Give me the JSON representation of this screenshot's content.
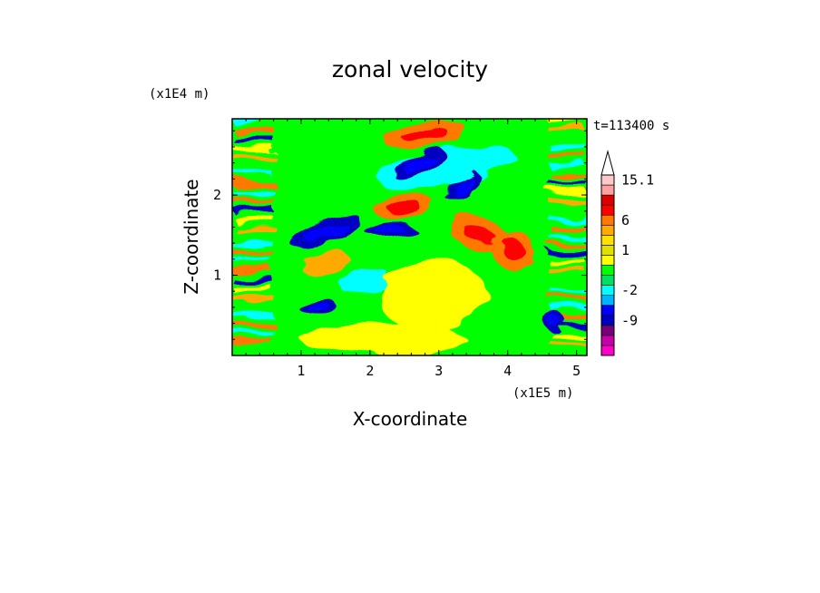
{
  "chart_data": {
    "type": "heatmap",
    "title": "zonal velocity",
    "xlabel": "X-coordinate",
    "ylabel": "Z-coordinate",
    "x_unit": "(x1E5 m)",
    "y_unit": "(x1E4 m)",
    "time_label": "t=113400 s",
    "xlim": [
      0,
      5.15
    ],
    "ylim": [
      0,
      2.95
    ],
    "x_ticks": [
      "1",
      "2",
      "3",
      "4",
      "5"
    ],
    "y_ticks": [
      "1",
      "2"
    ],
    "colorbar": {
      "colors": [
        "#ff00c8",
        "#c800aa",
        "#780078",
        "#0000c0",
        "#0000ff",
        "#00b4ff",
        "#00ffff",
        "#00e164",
        "#00ff00",
        "#ffff00",
        "#e1e100",
        "#ffe100",
        "#ffaa00",
        "#ff7800",
        "#ff0000",
        "#dc0000",
        "#ffa0a0",
        "#ffc8c8"
      ],
      "labels": [
        "-9",
        "-2",
        "1",
        "6",
        "15.1"
      ],
      "label_levels": [
        3,
        6,
        10,
        13,
        17
      ],
      "extends_max": true
    },
    "field": {
      "description_levels": "bands: 0 magenta(strong negative) ... 6 cyan, 8 green, 9 yellow, 12 orange, 14 red",
      "features": [
        {
          "type": "blob",
          "x": 1.35,
          "z": 1.55,
          "rx": 0.55,
          "rz": 0.14,
          "rot": -18,
          "level": 3
        },
        {
          "type": "blob",
          "x": 2.3,
          "z": 1.55,
          "rx": 0.35,
          "rz": 0.09,
          "rot": -5,
          "level": 3
        },
        {
          "type": "blob",
          "x": 1.25,
          "z": 0.6,
          "rx": 0.25,
          "rz": 0.12,
          "rot": -10,
          "level": 3
        },
        {
          "type": "blob",
          "x": 2.7,
          "z": 2.4,
          "rx": 0.4,
          "rz": 0.12,
          "rot": -30,
          "level": 3
        },
        {
          "type": "blob",
          "x": 3.35,
          "z": 2.1,
          "rx": 0.3,
          "rz": 0.08,
          "rot": -35,
          "level": 3
        },
        {
          "type": "blob",
          "x": 4.65,
          "z": 0.45,
          "rx": 0.15,
          "rz": 0.12,
          "rot": 0,
          "level": 3
        },
        {
          "type": "blob",
          "x": 2.5,
          "z": 1.85,
          "rx": 0.45,
          "rz": 0.15,
          "rot": -5,
          "level": 13
        },
        {
          "type": "blob",
          "x": 3.6,
          "z": 1.5,
          "rx": 0.5,
          "rz": 0.2,
          "rot": 20,
          "level": 13
        },
        {
          "type": "blob",
          "x": 2.8,
          "z": 2.75,
          "rx": 0.6,
          "rz": 0.15,
          "rot": -10,
          "level": 13
        },
        {
          "type": "blob",
          "x": 1.35,
          "z": 1.15,
          "rx": 0.35,
          "rz": 0.12,
          "rot": -15,
          "level": 12
        },
        {
          "type": "blob",
          "x": 4.1,
          "z": 1.3,
          "rx": 0.3,
          "rz": 0.25,
          "rot": 30,
          "level": 13
        },
        {
          "type": "blob",
          "x": 1.9,
          "z": 0.95,
          "rx": 0.35,
          "rz": 0.15,
          "rot": -20,
          "level": 6
        },
        {
          "type": "blob",
          "x": 3.1,
          "z": 2.35,
          "rx": 1.0,
          "rz": 0.25,
          "rot": -10,
          "level": 6
        },
        {
          "type": "blob",
          "x": 2.0,
          "z": 1.25,
          "rx": 0.8,
          "rz": 0.25,
          "rot": -20,
          "level": 8
        },
        {
          "type": "blob",
          "x": 3.0,
          "z": 0.5,
          "rx": 1.0,
          "rz": 0.3,
          "rot": 0,
          "level": 8
        },
        {
          "type": "blob",
          "x": 2.9,
          "z": 0.75,
          "rx": 0.8,
          "rz": 0.45,
          "rot": 0,
          "level": 9
        },
        {
          "type": "blob",
          "x": 2.2,
          "z": 0.2,
          "rx": 1.2,
          "rz": 0.2,
          "rot": 0,
          "level": 9
        }
      ]
    }
  }
}
